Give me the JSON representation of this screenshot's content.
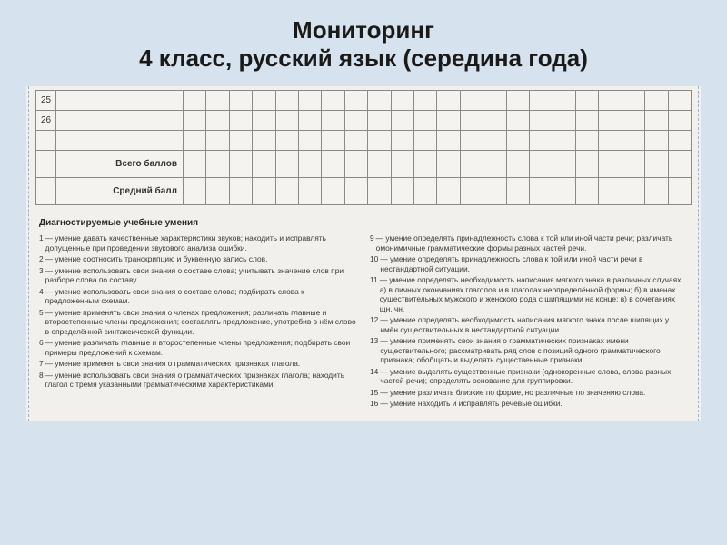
{
  "header": {
    "line1": "Мониторинг",
    "line2": "4 класс, русский язык  (середина года)"
  },
  "table": {
    "rows": [
      {
        "num": "25"
      },
      {
        "num": "26"
      },
      {
        "num": ""
      }
    ],
    "summary": [
      {
        "label": "Всего баллов"
      },
      {
        "label": "Средний балл"
      }
    ],
    "col_count": 22,
    "border_color": "#8a8a8a",
    "bg": "#f5f3f0"
  },
  "skills_header": "Диагностируемые учебные умения",
  "skills_left": [
    {
      "n": "1",
      "t": "— умение давать качественные характеристики звуков; находить и исправлять допущенные при проведении звукового анализа ошибки."
    },
    {
      "n": "2",
      "t": "— умение соотносить транскрипцию и буквенную запись слов."
    },
    {
      "n": "3",
      "t": "— умение использовать свои знания о составе слова; учитывать значение слов при разборе слова по составу."
    },
    {
      "n": "4",
      "t": "— умение использовать свои знания о составе слова; подбирать слова к предложенным схемам."
    },
    {
      "n": "5",
      "t": "— умение применять свои знания о членах предложения; различать главные и второстепенные члены предложения; составлять предложение, употребив в нём слово в определённой синтаксической функции."
    },
    {
      "n": "6",
      "t": "— умение различать главные и второстепенные члены предложения; подбирать свои примеры предложений к схемам."
    },
    {
      "n": "7",
      "t": "— умение применять свои знания о грамматических признаках глагола."
    },
    {
      "n": "8",
      "t": "— умение использовать свои знания о грамматических признаках глагола; находить глагол с тремя указанными грамматическими характеристиками."
    }
  ],
  "skills_right": [
    {
      "n": "9",
      "t": "— умение определять принадлежность слова к той или иной части речи; различать омонимичные грамматические формы разных частей речи."
    },
    {
      "n": "10",
      "t": "— умение определять принадлежность слова к той или иной части речи в нестандартной ситуации."
    },
    {
      "n": "11",
      "t": "— умение определять необходимость написания мягкого знака в различных случаях: а) в личных окончаниях глаголов и в глаголах неопределённой формы; б) в именах существительных мужского и женского рода с шипящими на конце; в) в сочетаниях щн, чн."
    },
    {
      "n": "12",
      "t": "— умение определять необходимость написания мягкого знака после шипящих у имён существительных в нестандартной ситуации."
    },
    {
      "n": "13",
      "t": "— умение применять свои знания о грамматических признаках имени существительного; рассматривать ряд слов с позиций одного грамматического признака; обобщать и выделять существенные признаки."
    },
    {
      "n": "14",
      "t": "— умение выделять существенные признаки (однокоренные слова, слова разных частей речи); определять основание для группировки."
    },
    {
      "n": "15",
      "t": "— умение различать близкие по форме, но различные по значению слова."
    },
    {
      "n": "16",
      "t": "— умение находить и исправлять речевые ошибки."
    }
  ],
  "colors": {
    "page_bg": "#d6e2ee",
    "doc_bg": "#f2f0ed",
    "text": "#1a1a1a",
    "skills_text": "#3a3a3a"
  }
}
